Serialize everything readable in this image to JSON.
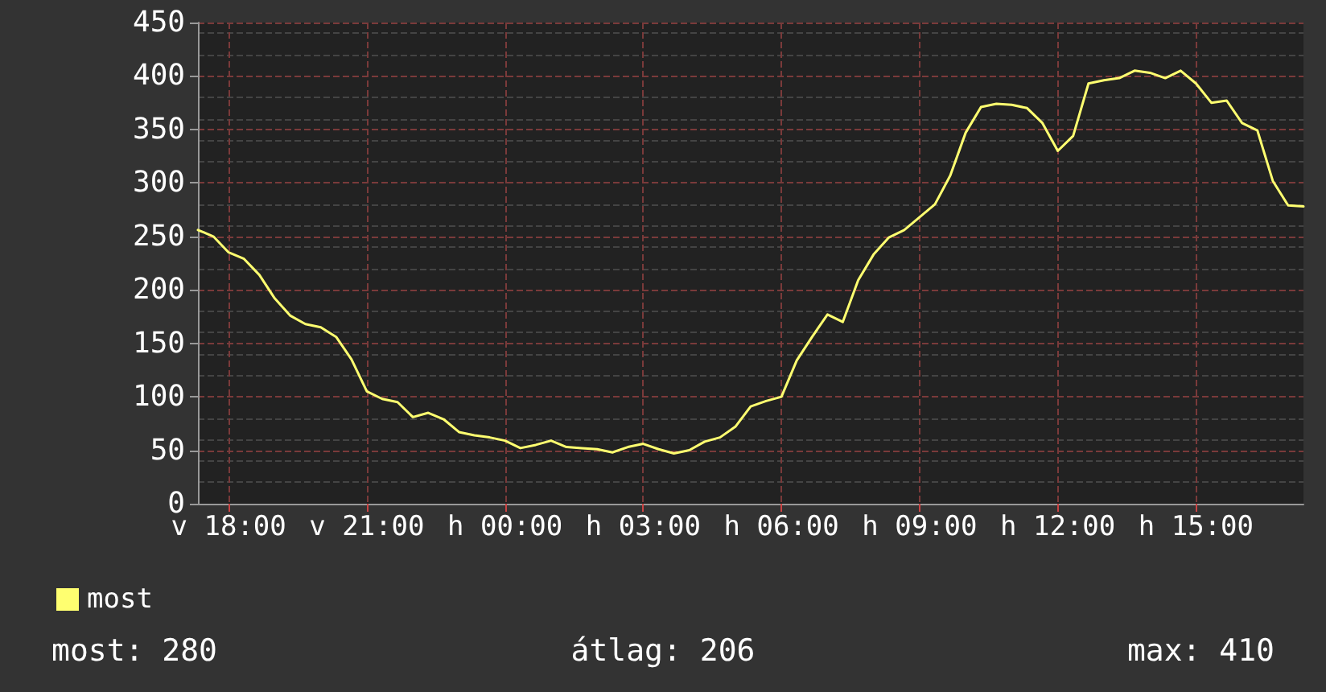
{
  "chart_data": {
    "type": "line",
    "ylim": [
      0,
      450
    ],
    "categories": [
      null,
      null,
      "v 18:00",
      null,
      null,
      null,
      null,
      null,
      null,
      null,
      null,
      "v 21:00",
      null,
      null,
      null,
      null,
      null,
      null,
      null,
      null,
      "h 00:00",
      null,
      null,
      null,
      null,
      null,
      null,
      null,
      null,
      "h 03:00",
      null,
      null,
      null,
      null,
      null,
      null,
      null,
      null,
      "h 06:00",
      null,
      null,
      null,
      null,
      null,
      null,
      null,
      null,
      "h 09:00",
      null,
      null,
      null,
      null,
      null,
      null,
      null,
      null,
      "h 12:00",
      null,
      null,
      null,
      null,
      null,
      null,
      null,
      null,
      "h 15:00",
      null,
      null,
      null,
      null,
      null,
      null,
      null
    ],
    "yticks": [
      0,
      50,
      100,
      150,
      200,
      250,
      300,
      350,
      400,
      450
    ],
    "grid": true,
    "legend": "bottom left",
    "marker": "none",
    "line_style": "solid",
    "annotations": [
      "most: 280",
      "átlag: 206",
      "max: 410"
    ],
    "series": [
      {
        "name": "most",
        "color": "#ffff70",
        "values": [
          256,
          250,
          235,
          229,
          214,
          192,
          176,
          168,
          165,
          156,
          135,
          105,
          98,
          95,
          81,
          85,
          79,
          67,
          64,
          62,
          59,
          52,
          55,
          59,
          53,
          52,
          51,
          48,
          53,
          56,
          51,
          47,
          50,
          58,
          62,
          72,
          91,
          96,
          100,
          134,
          156,
          177,
          170,
          209,
          233,
          249,
          256,
          268,
          280,
          307,
          347,
          371,
          374,
          373,
          370,
          356,
          330,
          344,
          393,
          396,
          398,
          405,
          403,
          398,
          405,
          393,
          375,
          377,
          356,
          349,
          302,
          279,
          278
        ]
      }
    ]
  }
}
